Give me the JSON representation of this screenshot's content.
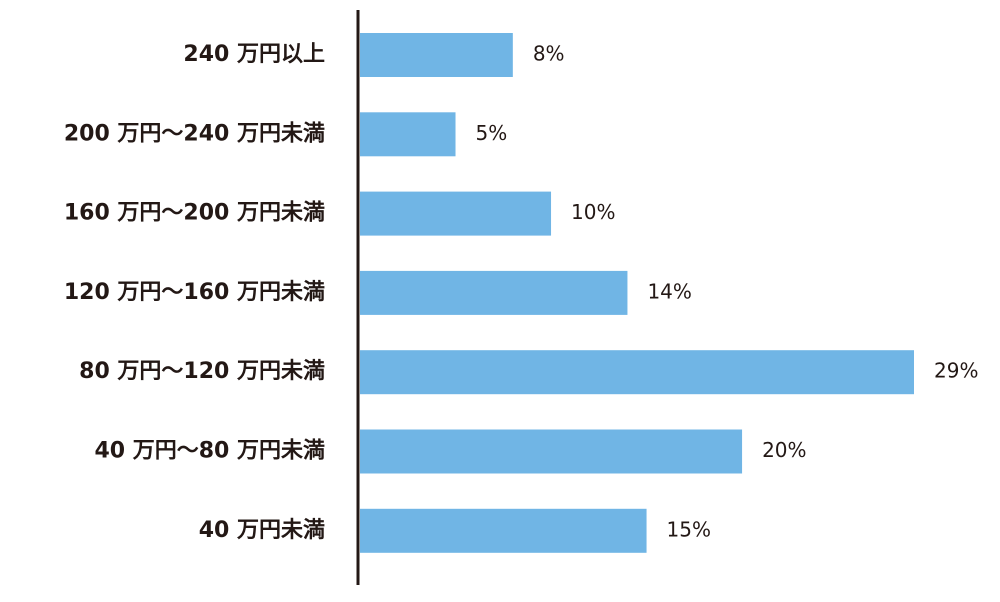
{
  "chart_data": {
    "type": "bar",
    "categories": [
      "240 万円以上",
      "200 万円〜240 万円未満",
      "160 万円〜200 万円未満",
      "120 万円〜160 万円未満",
      "80 万円〜120 万円未満",
      "40 万円〜80 万円未満",
      "40 万円未満"
    ],
    "values": [
      8,
      5,
      10,
      14,
      29,
      20,
      15
    ],
    "value_labels": [
      "8%",
      "5%",
      "10%",
      "14%",
      "29%",
      "20%",
      "15%"
    ],
    "color": "#70b5e5"
  }
}
